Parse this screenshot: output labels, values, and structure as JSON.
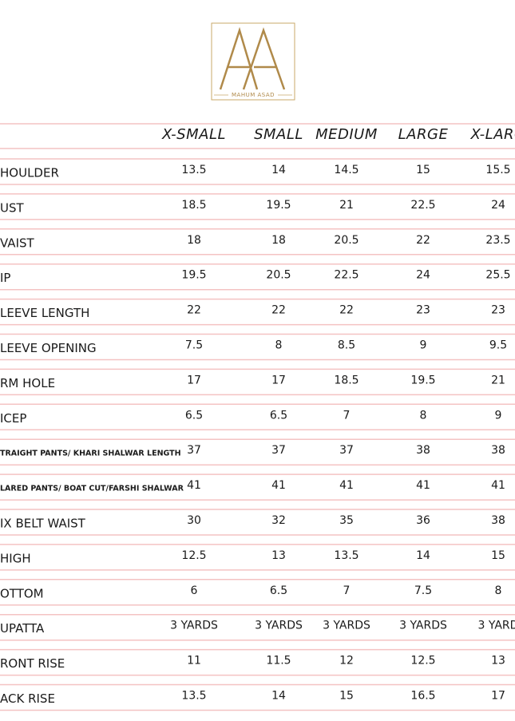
{
  "header": {
    "brand": "MAHUM ASAD"
  },
  "table": {
    "columns": [
      "X-SMALL",
      "SMALL",
      "MEDIUM",
      "LARGE",
      "X-LARG"
    ],
    "rows": [
      [
        "HOULDER",
        "13.5",
        "14",
        "14.5",
        "15",
        "15.5"
      ],
      [
        "UST",
        "18.5",
        "19.5",
        "21",
        "22.5",
        "24"
      ],
      [
        "VAIST",
        "18",
        "18",
        "20.5",
        "22",
        "23.5"
      ],
      [
        "IP",
        "19.5",
        "20.5",
        "22.5",
        "24",
        "25.5"
      ],
      [
        "LEEVE LENGTH",
        "22",
        "22",
        "22",
        "23",
        "23"
      ],
      [
        "LEEVE OPENING",
        "7.5",
        "8",
        "8.5",
        "9",
        "9.5"
      ],
      [
        "RM HOLE",
        "17",
        "17",
        "18.5",
        "19.5",
        "21"
      ],
      [
        "ICEP",
        "6.5",
        "6.5",
        "7",
        "8",
        "9"
      ],
      [
        "TRAIGHT PANTS/ KHARI SHALWAR LENGTH",
        "37",
        "37",
        "37",
        "38",
        "38"
      ],
      [
        "LARED PANTS/ BOAT CUT/FARSHI SHALWAR",
        "41",
        "41",
        "41",
        "41",
        "41"
      ],
      [
        "IX BELT WAIST",
        "30",
        "32",
        "35",
        "36",
        "38"
      ],
      [
        "HIGH",
        "12.5",
        "13",
        "13.5",
        "14",
        "15"
      ],
      [
        "OTTOM",
        "6",
        "6.5",
        "7",
        "7.5",
        "8"
      ],
      [
        "UPATTA",
        "3 YARDS",
        "3 YARDS",
        "3 YARDS",
        "3 YARDS",
        "3 YARD"
      ],
      [
        "RONT RISE",
        "11",
        "11.5",
        "12",
        "12.5",
        "13"
      ],
      [
        "ACK RISE",
        "13.5",
        "14",
        "15",
        "16.5",
        "17"
      ]
    ]
  }
}
